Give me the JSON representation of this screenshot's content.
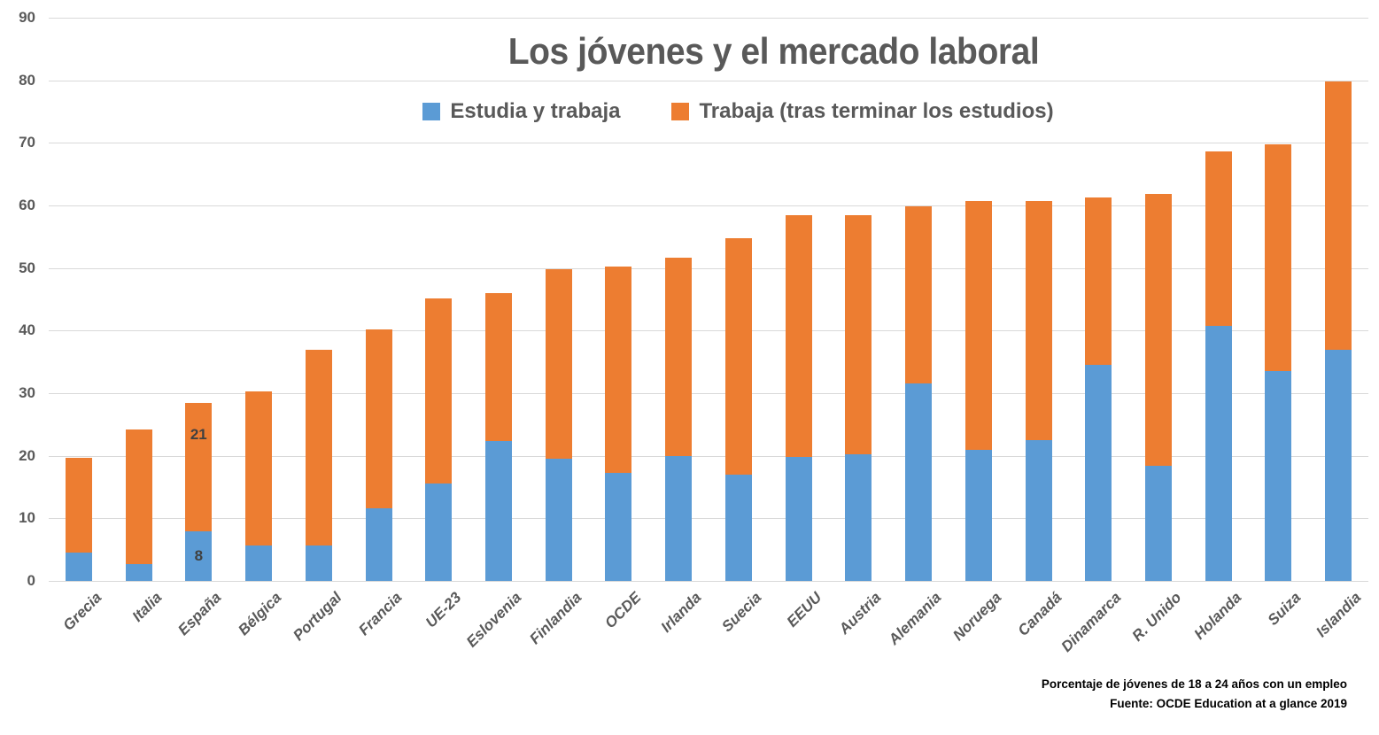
{
  "chart_data": {
    "type": "bar",
    "stacked": true,
    "title": "Los jóvenes y el mercado laboral",
    "categories": [
      "Grecia",
      "Italia",
      "España",
      "Bélgica",
      "Portugal",
      "Francia",
      "UE-23",
      "Eslovenia",
      "Finlandia",
      "OCDE",
      "Irlanda",
      "Suecia",
      "EEUU",
      "Austria",
      "Alemania",
      "Noruega",
      "Canadá",
      "Dinamarca",
      "R. Unido",
      "Holanda",
      "Suiza",
      "Islandia"
    ],
    "series": [
      {
        "name": "Estudia y trabaja",
        "key": "estudia-y-trabaja",
        "color": "#5B9BD5",
        "values": [
          4.5,
          2.7,
          7.9,
          5.7,
          5.7,
          11.6,
          15.6,
          22.3,
          19.6,
          17.2,
          20.0,
          17.0,
          19.8,
          20.2,
          31.5,
          20.9,
          22.5,
          34.6,
          18.4,
          40.8,
          33.6,
          37.0
        ]
      },
      {
        "name": "Trabaja (tras terminar los estudios)",
        "key": "trabaja-tras-terminar-los-estudios",
        "color": "#ED7D31",
        "values": [
          15.2,
          21.5,
          20.5,
          24.6,
          31.3,
          28.6,
          29.6,
          23.7,
          30.2,
          33.1,
          31.6,
          37.8,
          38.7,
          38.3,
          28.3,
          39.8,
          38.2,
          26.7,
          43.5,
          27.8,
          36.1,
          42.8
        ]
      }
    ],
    "totals": [
      19.7,
      24.2,
      28.4,
      30.3,
      37.0,
      40.2,
      45.2,
      46.0,
      49.8,
      50.3,
      51.6,
      54.8,
      58.5,
      58.5,
      59.8,
      60.7,
      60.7,
      61.3,
      61.9,
      68.6,
      69.7,
      79.8
    ],
    "data_labels": [
      {
        "category": "España",
        "series_index": 0,
        "text": "8",
        "valign": "middle"
      },
      {
        "category": "España",
        "series_index": 1,
        "text": "21",
        "valign": "upper"
      }
    ],
    "ylim": [
      0,
      90
    ],
    "yticks": [
      0,
      10,
      20,
      30,
      40,
      50,
      60,
      70,
      80,
      90
    ],
    "grid": true,
    "legend_position": "top",
    "xlabel": "",
    "ylabel": ""
  },
  "footer": {
    "line1": "Porcentaje de jóvenes de 18 a 24 años con un empleo",
    "line2": "Fuente: OCDE Education at a glance 2019"
  },
  "colors": {
    "title_text": "#595959",
    "axis_text": "#595959",
    "gridline": "#D9D9D9",
    "data_label_text": "#404040",
    "footer_text": "#000000",
    "background": "#FFFFFF"
  }
}
